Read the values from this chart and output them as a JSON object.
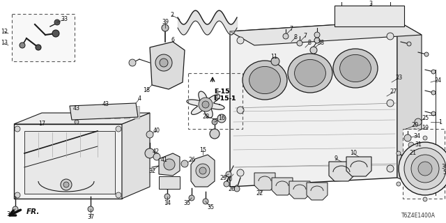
{
  "background_color": "#ffffff",
  "diagram_code": "T6Z4E1400A",
  "fr_arrow_text": "FR.",
  "e15_label": "E-15\nE-15-1",
  "line_color": "#1a1a1a",
  "label_color": "#111111"
}
